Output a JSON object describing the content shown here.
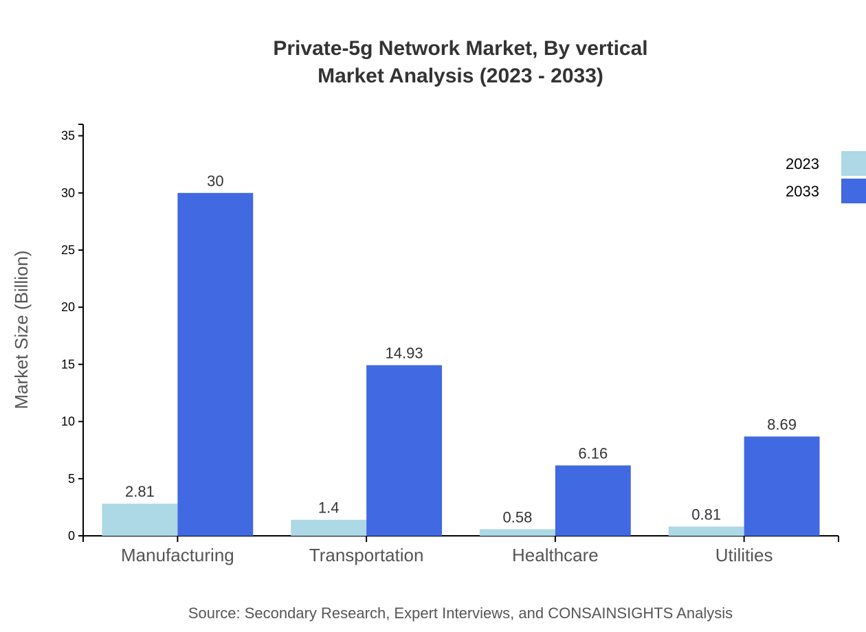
{
  "chart_data": {
    "type": "bar",
    "title": [
      "Private-5g Network Market, By vertical",
      "Market Analysis (2023 - 2033)"
    ],
    "xlabel": "",
    "ylabel": "Market Size (Billion)",
    "categories": [
      "Manufacturing",
      "Transportation",
      "Healthcare",
      "Utilities"
    ],
    "series": [
      {
        "name": "2023",
        "color": "#add8e6",
        "values": [
          2.81,
          1.4,
          0.58,
          0.81
        ]
      },
      {
        "name": "2033",
        "color": "#4169e1",
        "values": [
          30,
          14.93,
          6.16,
          8.69
        ]
      }
    ],
    "ylim": [
      0,
      36
    ],
    "yticks": [
      0,
      5,
      10,
      15,
      20,
      25,
      30,
      35
    ],
    "grid": false,
    "legend": "top-right",
    "source": "Source: Secondary Research, Expert Interviews, and CONSAINSIGHTS Analysis"
  }
}
